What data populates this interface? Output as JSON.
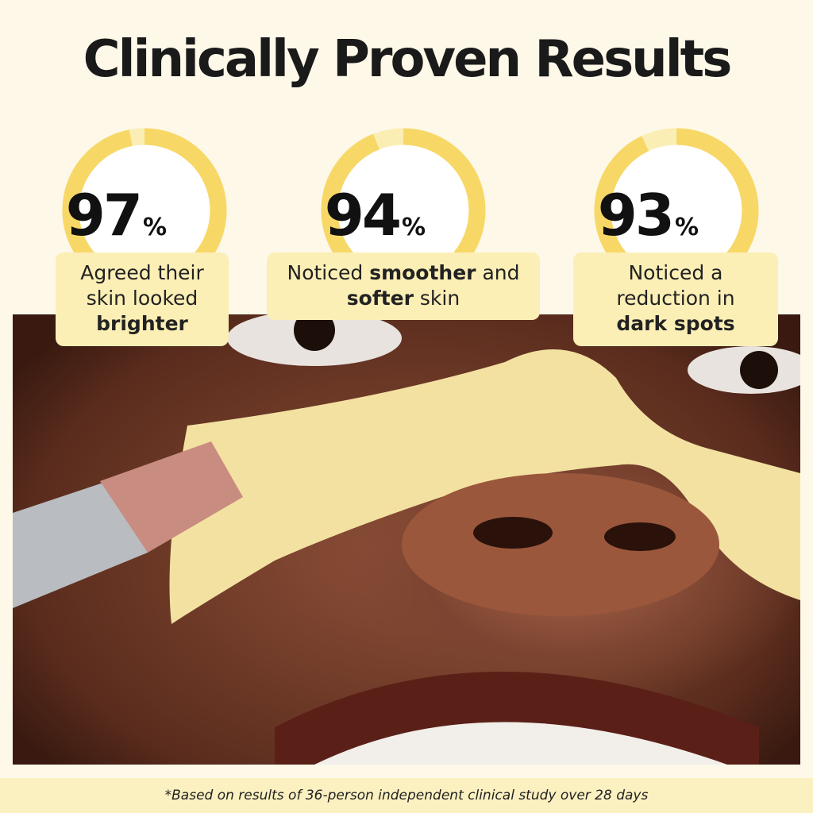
{
  "title": "Clinically Proven Results",
  "colors": {
    "ring_fill": "#f7d867",
    "ring_track": "#fbeeb5",
    "box": "#fcefb6",
    "background": "#fdf8e8"
  },
  "stats": [
    {
      "value": "97",
      "unit": "%",
      "percent": 97,
      "parts": [
        {
          "t": "Agreed their skin looked ",
          "b": false
        },
        {
          "t": "brighter",
          "b": true
        }
      ]
    },
    {
      "value": "94",
      "unit": "%",
      "percent": 94,
      "parts": [
        {
          "t": "Noticed ",
          "b": false
        },
        {
          "t": "smoother",
          "b": true
        },
        {
          "t": " and ",
          "b": false
        },
        {
          "t": "softer",
          "b": true
        },
        {
          "t": " skin",
          "b": false
        }
      ]
    },
    {
      "value": "93",
      "unit": "%",
      "percent": 93,
      "parts": [
        {
          "t": "Noticed a reduction in ",
          "b": false
        },
        {
          "t": "dark spots",
          "b": true
        }
      ]
    }
  ],
  "footnote": "*Based on results of 36-person independent clinical study over 28 days"
}
